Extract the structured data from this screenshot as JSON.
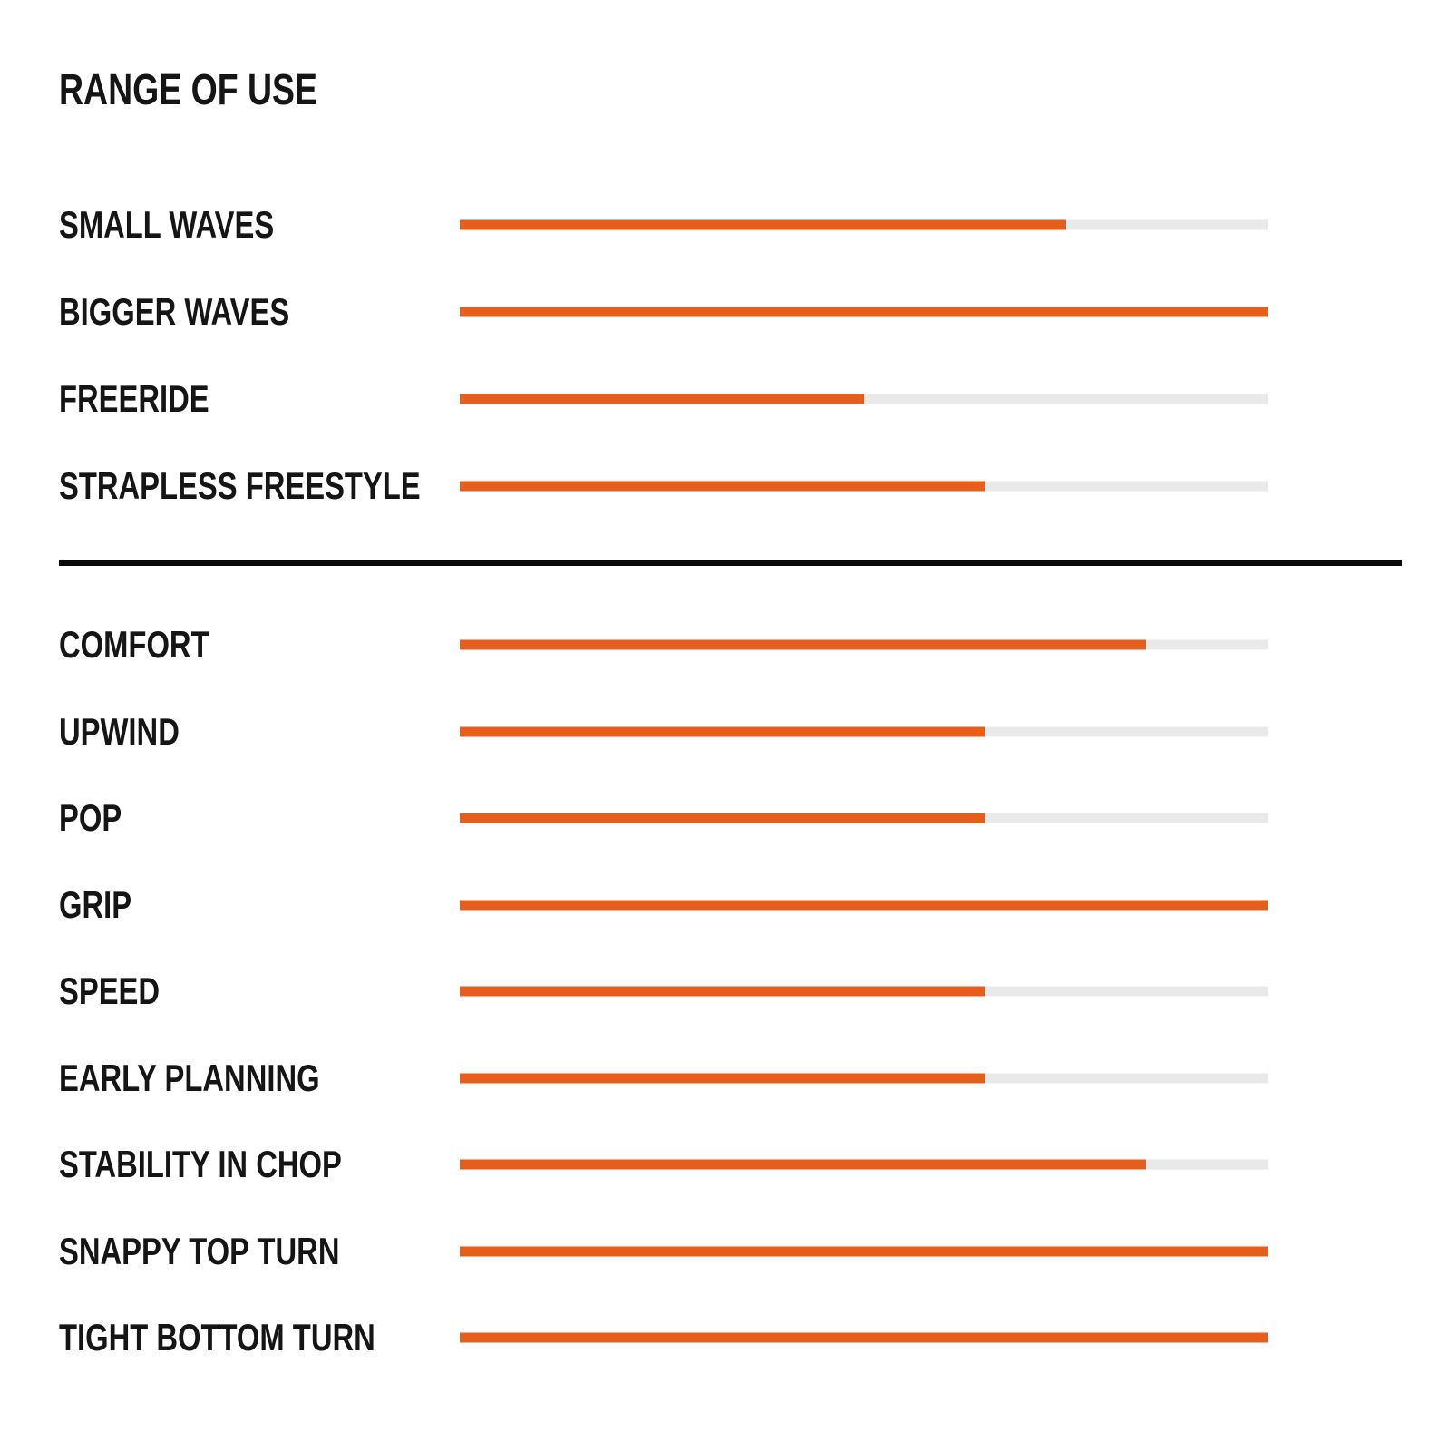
{
  "title": "RANGE OF USE",
  "colors": {
    "bar_fill": "#E75D1B",
    "bar_track": "#E9E9E9",
    "text": "#151515",
    "divider": "#0A0A0A",
    "background": "#FFFFFF"
  },
  "chart_data": {
    "type": "bar",
    "orientation": "horizontal",
    "title": "RANGE OF USE",
    "value_unit": "percent",
    "value_range": [
      0,
      100
    ],
    "grid": false,
    "legend": "none",
    "groups": [
      {
        "name": "range_of_use",
        "categories": [
          "SMALL WAVES",
          "BIGGER WAVES",
          "FREERIDE",
          "STRAPLESS FREESTYLE"
        ],
        "values": [
          75,
          100,
          50,
          65
        ]
      },
      {
        "name": "performance",
        "categories": [
          "COMFORT",
          "UPWIND",
          "POP",
          "GRIP",
          "SPEED",
          "EARLY PLANNING",
          "STABILITY IN CHOP",
          "SNAPPY TOP TURN",
          "TIGHT BOTTOM TURN"
        ],
        "values": [
          85,
          65,
          65,
          100,
          65,
          65,
          85,
          100,
          100
        ]
      }
    ]
  }
}
